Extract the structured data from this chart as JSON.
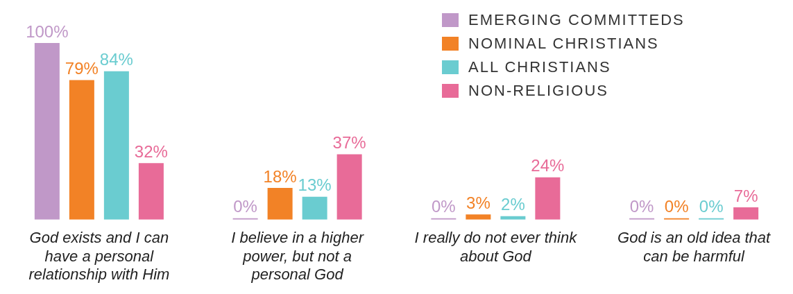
{
  "chart_data": {
    "type": "bar",
    "categories": [
      "God exists and I can have a personal relationship with Him",
      "I believe in a higher power, but not a personal God",
      "I really do not ever think about God",
      "God is an old idea that can be harmful"
    ],
    "series": [
      {
        "name": "EMERGING COMMITTEDS",
        "color": "#c098c8",
        "values": [
          100,
          0,
          0,
          0
        ],
        "value_labels": [
          "100%",
          "0%",
          "0%",
          "0%"
        ]
      },
      {
        "name": "NOMINAL CHRISTIANS",
        "color": "#f28226",
        "values": [
          79,
          18,
          3,
          0
        ],
        "value_labels": [
          "79%",
          "18%",
          "3%",
          "0%"
        ]
      },
      {
        "name": "ALL CHRISTIANS",
        "color": "#6accd0",
        "values": [
          84,
          13,
          2,
          0
        ],
        "value_labels": [
          "84%",
          "13%",
          "2%",
          "0%"
        ]
      },
      {
        "name": "NON-RELIGIOUS",
        "color": "#e86b98",
        "values": [
          32,
          37,
          24,
          7
        ],
        "value_labels": [
          "32%",
          "37%",
          "24%",
          "7%"
        ]
      }
    ],
    "legend": "top right",
    "grid": false
  }
}
